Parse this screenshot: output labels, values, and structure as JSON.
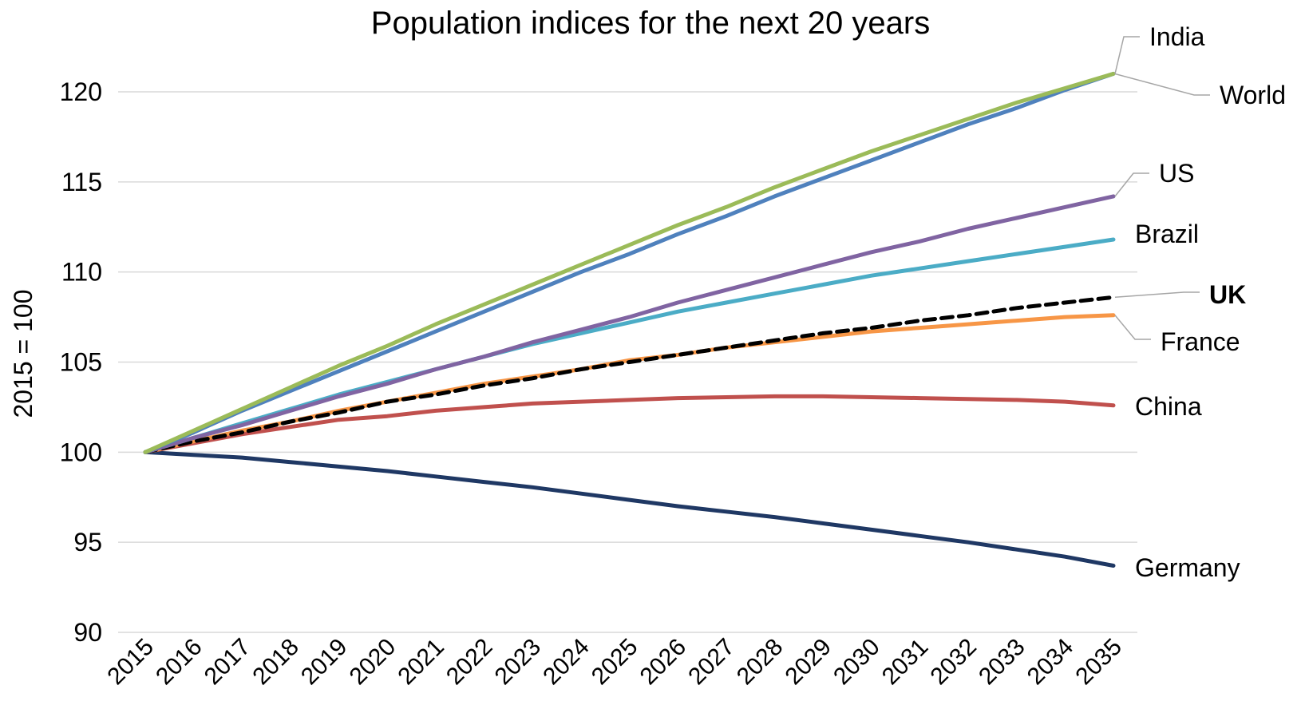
{
  "chart_data": {
    "type": "line",
    "title": "Population indices for the next 20 years",
    "xlabel": "",
    "ylabel": "2015 = 100",
    "ylim": [
      90,
      120
    ],
    "yticks": [
      90,
      95,
      100,
      105,
      110,
      115,
      120
    ],
    "grid": true,
    "legend": "direct labels at line ends (right)",
    "x": [
      2015,
      2016,
      2017,
      2018,
      2019,
      2020,
      2021,
      2022,
      2023,
      2024,
      2025,
      2026,
      2027,
      2028,
      2029,
      2030,
      2031,
      2032,
      2033,
      2034,
      2035
    ],
    "series": [
      {
        "name": "India",
        "color": "#9bbb59",
        "dash": false,
        "bold": false,
        "values": [
          100,
          101.2,
          102.4,
          103.6,
          104.8,
          105.9,
          107.1,
          108.2,
          109.3,
          110.4,
          111.5,
          112.6,
          113.6,
          114.7,
          115.7,
          116.7,
          117.6,
          118.5,
          119.4,
          120.2,
          121.0
        ]
      },
      {
        "name": "World",
        "color": "#4f81bd",
        "dash": false,
        "bold": false,
        "values": [
          100,
          101.1,
          102.3,
          103.4,
          104.5,
          105.6,
          106.7,
          107.8,
          108.9,
          110.0,
          111.0,
          112.1,
          113.1,
          114.2,
          115.2,
          116.2,
          117.2,
          118.2,
          119.1,
          120.1,
          121.0
        ]
      },
      {
        "name": "US",
        "color": "#8064a2",
        "dash": false,
        "bold": false,
        "values": [
          100,
          100.8,
          101.5,
          102.3,
          103.1,
          103.8,
          104.6,
          105.3,
          106.1,
          106.8,
          107.5,
          108.3,
          109.0,
          109.7,
          110.4,
          111.1,
          111.7,
          112.4,
          113.0,
          113.6,
          114.2
        ]
      },
      {
        "name": "Brazil",
        "color": "#4bacc6",
        "dash": false,
        "bold": false,
        "values": [
          100,
          100.8,
          101.6,
          102.4,
          103.2,
          103.9,
          104.6,
          105.3,
          106.0,
          106.6,
          107.2,
          107.8,
          108.3,
          108.8,
          109.3,
          109.8,
          110.2,
          110.6,
          111.0,
          111.4,
          111.8
        ]
      },
      {
        "name": "UK",
        "color": "#000000",
        "dash": true,
        "bold": true,
        "values": [
          100,
          100.6,
          101.1,
          101.7,
          102.2,
          102.8,
          103.2,
          103.7,
          104.1,
          104.6,
          105.0,
          105.4,
          105.8,
          106.2,
          106.6,
          106.9,
          107.3,
          107.6,
          108.0,
          108.3,
          108.6
        ]
      },
      {
        "name": "France",
        "color": "#f79646",
        "dash": false,
        "bold": false,
        "values": [
          100,
          100.6,
          101.2,
          101.7,
          102.3,
          102.8,
          103.3,
          103.8,
          104.2,
          104.6,
          105.1,
          105.4,
          105.8,
          106.1,
          106.4,
          106.7,
          106.9,
          107.1,
          107.3,
          107.5,
          107.6
        ]
      },
      {
        "name": "China",
        "color": "#c0504d",
        "dash": false,
        "bold": false,
        "values": [
          100,
          100.5,
          101.0,
          101.4,
          101.8,
          102.0,
          102.3,
          102.5,
          102.7,
          102.8,
          102.9,
          103.0,
          103.05,
          103.1,
          103.1,
          103.05,
          103.0,
          102.95,
          102.9,
          102.8,
          102.6
        ]
      },
      {
        "name": "Germany",
        "color": "#1f3864",
        "dash": false,
        "bold": false,
        "values": [
          100,
          99.85,
          99.7,
          99.45,
          99.2,
          98.95,
          98.65,
          98.35,
          98.05,
          97.7,
          97.35,
          97.0,
          96.7,
          96.4,
          96.05,
          95.7,
          95.35,
          95.0,
          94.6,
          94.2,
          93.7
        ]
      }
    ]
  }
}
